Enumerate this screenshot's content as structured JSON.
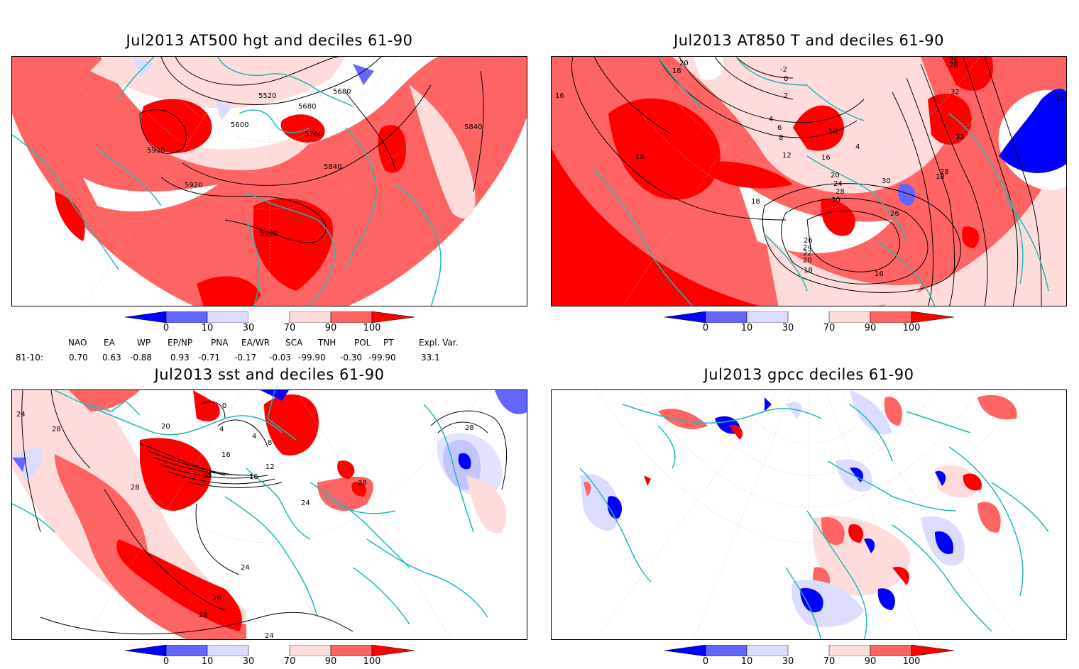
{
  "panels": {
    "p1": {
      "title": "Jul2013 AT500 hgt and deciles 61-90",
      "contour_labels": [
        "5520",
        "5680",
        "5680",
        "5600",
        "5760",
        "5840",
        "5840",
        "5920",
        "5920",
        "5920"
      ]
    },
    "p2": {
      "title": "Jul2013 AT850 T and deciles 61-90",
      "contour_labels": [
        "20",
        "18",
        "-2",
        "0",
        "2",
        "26",
        "28",
        "16",
        "16",
        "4",
        "6",
        "8",
        "10",
        "12",
        "32",
        "32",
        "18",
        "16",
        "4",
        "20",
        "24",
        "28",
        "30",
        "18",
        "30",
        "28",
        "18",
        "26",
        "26",
        "24",
        "22",
        "20",
        "18",
        "16"
      ]
    },
    "p3": {
      "title": "Jul2013 sst and deciles 61-90",
      "contour_labels": [
        "24",
        "28",
        "20",
        "0",
        "4",
        "4",
        "8",
        "12",
        "16",
        "20",
        "16",
        "24",
        "28",
        "28",
        "28",
        "24",
        "26",
        "28",
        "24"
      ]
    },
    "p4": {
      "title": "Jul2013 gpcc deciles 61-90"
    }
  },
  "colorbar": {
    "labels": [
      "0",
      "10",
      "30",
      "70",
      "90",
      "100"
    ],
    "colors": {
      "deep_blue": "#0000ff",
      "mid_blue": "#6464ff",
      "light_blue": "#dcdcff",
      "light_red": "#ffdcdc",
      "mid_red": "#ff6464",
      "deep_red": "#ff0000"
    }
  },
  "teleconnections": {
    "headers": [
      "NAO",
      "EA",
      "WP",
      "EP/NP",
      "PNA",
      "EA/WR",
      "SCA",
      "TNH",
      "POL",
      "PT",
      "Expl. Var."
    ],
    "row_label": "81-10:",
    "values": [
      "0.70",
      "0.63",
      "-0.88",
      "0.93",
      "-0.71",
      "-0.17",
      "-0.03",
      "-99.90",
      "-0.30",
      "-99.90",
      "33.1"
    ]
  },
  "colors": {
    "coast": "#1fb8b8",
    "frame": "#000000"
  }
}
